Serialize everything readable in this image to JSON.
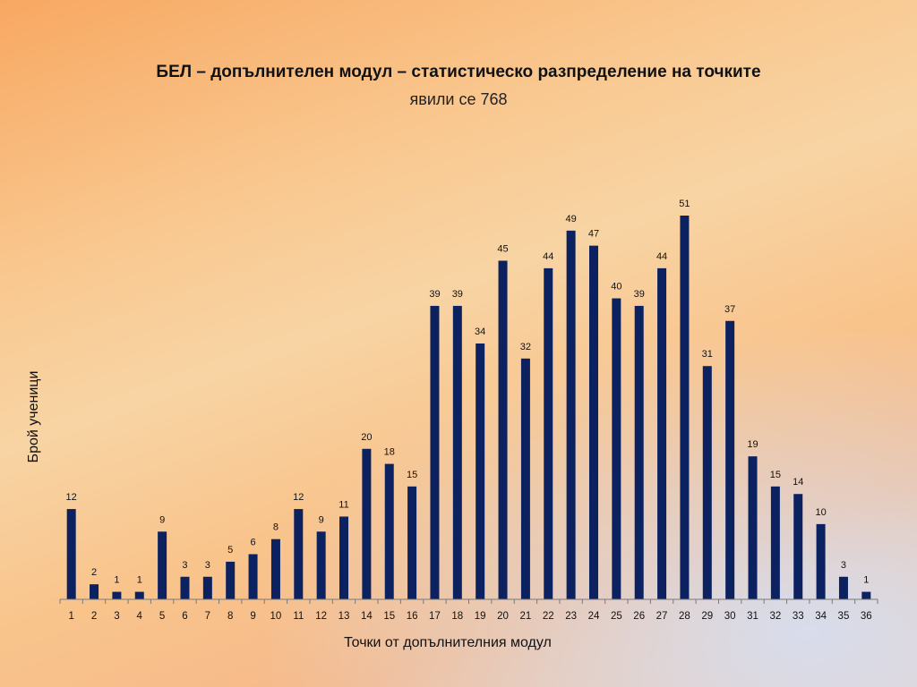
{
  "slide": {
    "title": "БЕЛ – допълнителен модул – статистическо разпределение на точките",
    "subtitle": "явили се 768"
  },
  "chart_data": {
    "type": "bar",
    "title": "БЕЛ – допълнителен модул – статистическо разпределение на точките",
    "subtitle": "явили се 768",
    "xlabel": "Точки от допълнителния модул",
    "ylabel": "Брой ученици",
    "categories": [
      "1",
      "2",
      "3",
      "4",
      "5",
      "6",
      "7",
      "8",
      "9",
      "10",
      "11",
      "12",
      "13",
      "14",
      "15",
      "16",
      "17",
      "18",
      "19",
      "20",
      "21",
      "22",
      "23",
      "24",
      "25",
      "26",
      "27",
      "28",
      "29",
      "30",
      "31",
      "32",
      "33",
      "34",
      "35",
      "36"
    ],
    "values": [
      12,
      2,
      1,
      1,
      9,
      3,
      3,
      5,
      6,
      8,
      12,
      9,
      11,
      20,
      18,
      15,
      39,
      39,
      34,
      45,
      32,
      44,
      49,
      47,
      40,
      39,
      44,
      51,
      31,
      37,
      19,
      15,
      14,
      10,
      3,
      1
    ],
    "ylim": [
      0,
      51
    ],
    "grid": false,
    "legend": "none",
    "data_labels": true,
    "bar_color": "#0c2160"
  }
}
